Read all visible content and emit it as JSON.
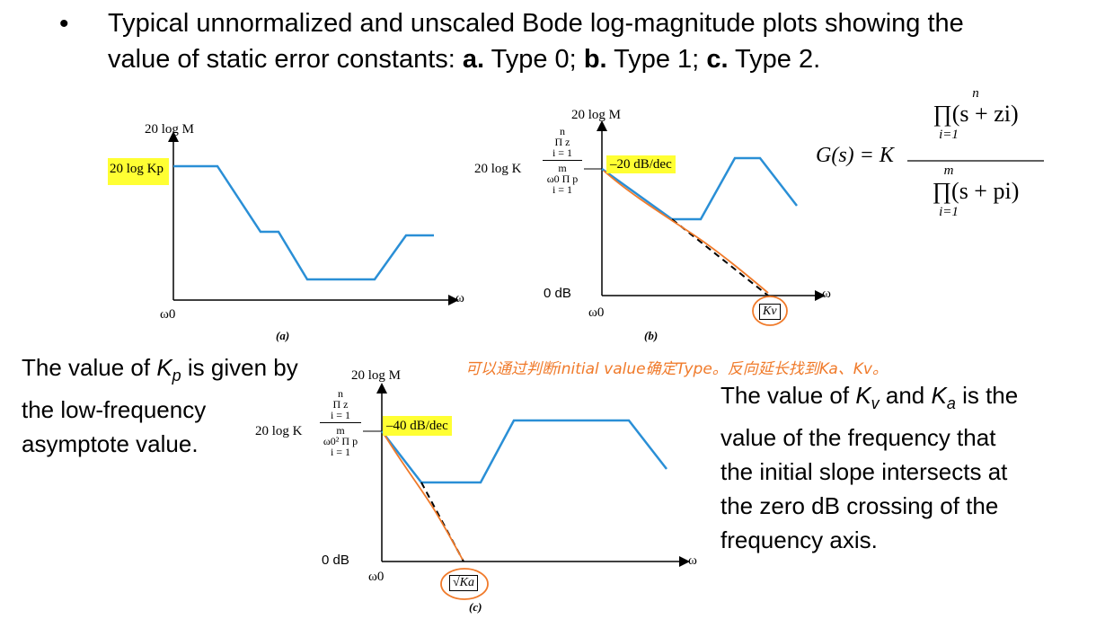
{
  "bullet": {
    "symbol": "•",
    "line1": "Typical unnormalized and unscaled Bode log-magnitude plots showing the",
    "line2_prefix": "value of static error constants: ",
    "a_label": "a.",
    "a_text": " Type 0; ",
    "b_label": "b.",
    "b_text": " Type 1; ",
    "c_label": "c.",
    "c_text": " Type 2."
  },
  "plot_a": {
    "ylabel": "20 log M",
    "level_label": "20 log Kp",
    "x_origin": "ω0",
    "x_axis": "ω",
    "caption": "(a)"
  },
  "plot_b": {
    "ylabel": "20 log M",
    "level_prefix": "20 log K",
    "num_top": "n",
    "num_prod": "Π z",
    "num_sub": "i = 1",
    "den_prod": "ω0 Π p",
    "den_top": "m",
    "den_sub": "i = 1",
    "slope": "–20 dB/dec",
    "zero_db": "0 dB",
    "x_origin": "ω0",
    "x_axis": "ω",
    "crossing": "Kv",
    "caption": "(b)"
  },
  "plot_c": {
    "ylabel": "20 log M",
    "level_prefix": "20 log K",
    "num_top": "n",
    "num_prod": "Π z",
    "num_sub": "i = 1",
    "den_prod": "ω0² Π p",
    "den_top": "m",
    "den_sub": "i = 1",
    "slope": "–40 dB/dec",
    "zero_db": "0 dB",
    "x_origin": "ω0",
    "x_axis": "ω",
    "crossing": "√Ka",
    "caption": "(c)"
  },
  "formula": {
    "lhs": "G(s) = K",
    "num_top": "n",
    "num_body": "∏(s + zi)",
    "num_sub": "i=1",
    "den_top": "m",
    "den_body": "∏(s + pi)",
    "den_sub": "i=1"
  },
  "note_left": {
    "line1_a": "The value of ",
    "line1_k": "K",
    "line1_sub": "p",
    "line1_b": " is given by",
    "line2": "the low-frequency",
    "line3": "asymptote value."
  },
  "note_right": {
    "line1_a": "The value of ",
    "kv": "K",
    "kv_sub": "v",
    "mid": " and ",
    "ka": "K",
    "ka_sub": "a",
    "line1_b": " is the",
    "line2": "value of the frequency that",
    "line3": "the initial slope intersects at",
    "line4": "the zero dB crossing of the",
    "line5": "frequency axis."
  },
  "handwritten": "可以通过判断initial value确定Type。反向延长找到Ka、Kv。",
  "colors": {
    "curve": "#2a8fd6",
    "highlight": "#ffff33",
    "annotation": "#f07a2a",
    "axis": "#000000"
  }
}
